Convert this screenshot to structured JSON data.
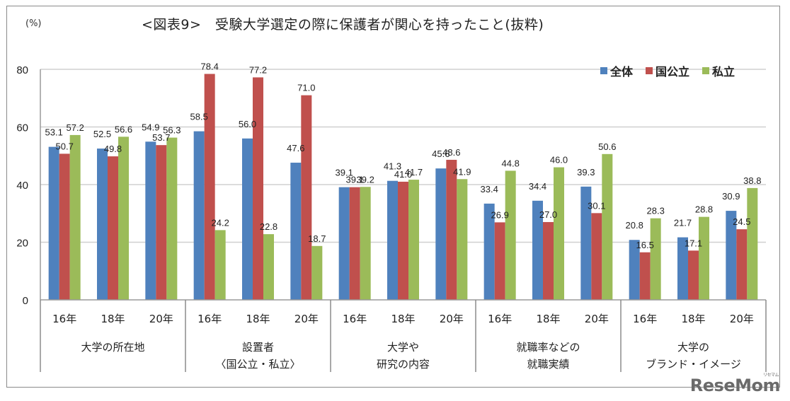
{
  "chart_data": {
    "type": "bar",
    "title": "<図表9>　受験大学選定の際に保護者が関心を持ったこと(抜粋)",
    "ylabel": "(%)",
    "xlabel": "",
    "ylim": [
      0,
      80
    ],
    "yticks": [
      "0",
      "20",
      "40",
      "60",
      "80"
    ],
    "grid": true,
    "legend_position": "top-right",
    "groups": [
      {
        "label_lines": [
          "大学の所在地"
        ],
        "years": [
          "16年",
          "18年",
          "20年"
        ]
      },
      {
        "label_lines": [
          "設置者",
          "〈国公立・私立〉"
        ],
        "years": [
          "16年",
          "18年",
          "20年"
        ]
      },
      {
        "label_lines": [
          "大学や",
          "研究の内容"
        ],
        "years": [
          "16年",
          "18年",
          "20年"
        ]
      },
      {
        "label_lines": [
          "就職率などの",
          "就職実績"
        ],
        "years": [
          "16年",
          "18年",
          "20年"
        ]
      },
      {
        "label_lines": [
          "大学の",
          "ブランド・イメージ"
        ],
        "years": [
          "16年",
          "18年",
          "20年"
        ]
      }
    ],
    "series": [
      {
        "name": "全体",
        "color": "#4f81bd",
        "values": [
          53.1,
          52.5,
          54.9,
          58.5,
          56.0,
          47.6,
          39.1,
          41.3,
          45.6,
          33.4,
          34.4,
          39.3,
          20.8,
          21.7,
          30.9
        ]
      },
      {
        "name": "国公立",
        "color": "#c0504d",
        "values": [
          50.7,
          49.8,
          53.7,
          78.4,
          77.2,
          71.0,
          39.1,
          41.0,
          48.6,
          26.9,
          27.0,
          30.1,
          16.5,
          17.1,
          24.5
        ]
      },
      {
        "name": "私立",
        "color": "#9bbb59",
        "values": [
          57.2,
          56.6,
          56.3,
          24.2,
          22.8,
          18.7,
          39.2,
          41.7,
          41.9,
          44.8,
          46.0,
          50.6,
          28.3,
          28.8,
          38.8
        ]
      }
    ]
  },
  "watermark": {
    "text": "ReseMom",
    "ruby": "リセマム"
  }
}
